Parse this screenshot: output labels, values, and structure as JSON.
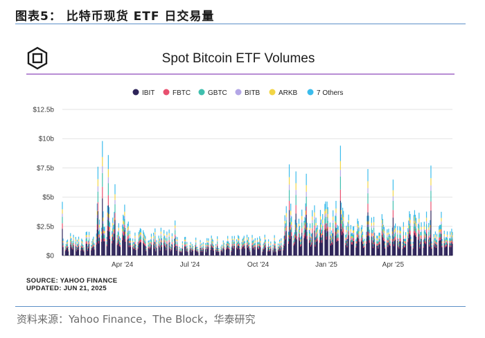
{
  "figure": {
    "title": "图表5：  比特币现货 ETF 日交易量",
    "source": "资料来源：Yahoo Finance，The Block，华泰研究"
  },
  "chart_data": {
    "type": "bar",
    "stacked": true,
    "title": "Spot Bitcoin ETF Volumes",
    "xlabel": "",
    "ylabel": "",
    "y_tick_labels": [
      "$0",
      "$2.5b",
      "$5b",
      "$7.5b",
      "$10b",
      "$12.5b"
    ],
    "y_ticks": [
      0,
      2.5,
      5,
      7.5,
      10,
      12.5
    ],
    "ylim": [
      0,
      12.5
    ],
    "x_tick_labels": [
      "Apr '24",
      "Jul '24",
      "Oct '24",
      "Jan '25",
      "Apr '25"
    ],
    "x_ticks": [
      "2024-04-01",
      "2024-07-01",
      "2024-10-01",
      "2025-01-01",
      "2025-04-01"
    ],
    "x_range": [
      "2024-01-11",
      "2025-06-20"
    ],
    "grid": true,
    "legend_position": "top-center",
    "series": [
      {
        "name": "IBIT",
        "color": "#2e2459"
      },
      {
        "name": "FBTC",
        "color": "#e8506f"
      },
      {
        "name": "GBTC",
        "color": "#3fbfae"
      },
      {
        "name": "BITB",
        "color": "#b3a6e6"
      },
      {
        "name": "ARKB",
        "color": "#f2d545"
      },
      {
        "name": "7 Others",
        "color": "#3bbcec"
      }
    ],
    "approx_total_volume_peaks": [
      {
        "date": "2024-01-11",
        "value": 4.6
      },
      {
        "date": "2024-02-28",
        "value": 7.6
      },
      {
        "date": "2024-03-05",
        "value": 9.8
      },
      {
        "date": "2024-03-13",
        "value": 8.6
      },
      {
        "date": "2024-03-22",
        "value": 6.1
      },
      {
        "date": "2024-06-11",
        "value": 3.0
      },
      {
        "date": "2024-11-12",
        "value": 7.8
      },
      {
        "date": "2024-11-21",
        "value": 7.2
      },
      {
        "date": "2024-12-05",
        "value": 7.0
      },
      {
        "date": "2025-01-20",
        "value": 9.4
      },
      {
        "date": "2025-02-26",
        "value": 7.4
      },
      {
        "date": "2025-04-01",
        "value": 6.5
      },
      {
        "date": "2025-05-22",
        "value": 7.7
      }
    ],
    "notes": [
      "SOURCE: YAHOO FINANCE",
      "UPDATED: JUN 21, 2025"
    ]
  }
}
